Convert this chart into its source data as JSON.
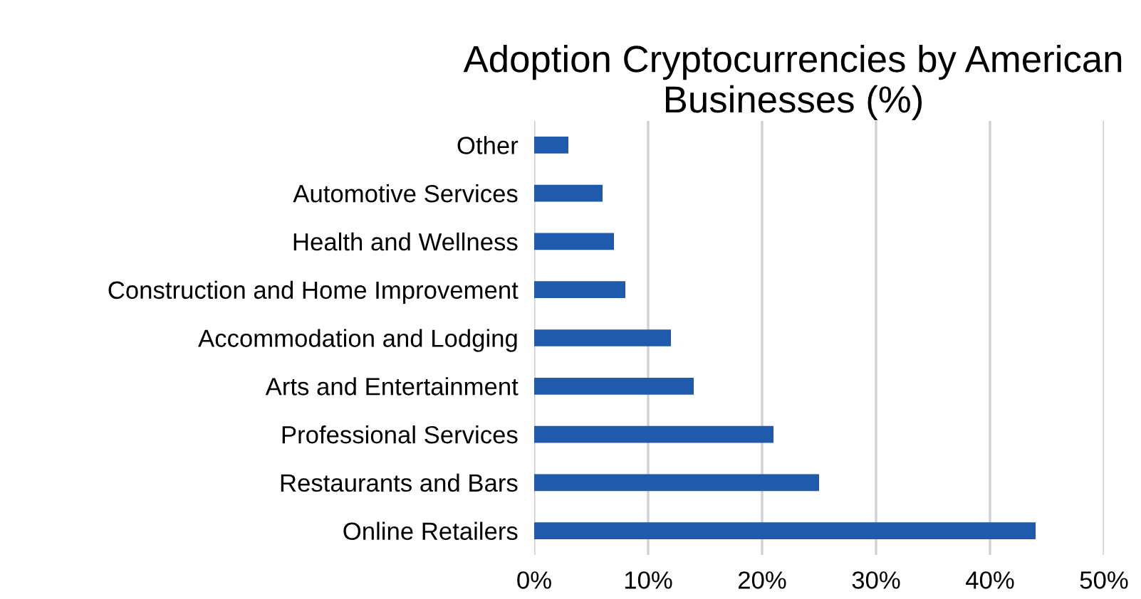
{
  "chart_data": {
    "type": "bar",
    "orientation": "horizontal",
    "title": "Adoption Cryptocurrencies by American\nBusinesses (%)",
    "categories": [
      "Other",
      "Automotive Services",
      "Health and Wellness",
      "Construction and Home Improvement",
      "Accommodation and Lodging",
      "Arts and Entertainment",
      "Professional Services",
      "Restaurants and Bars",
      "Online Retailers"
    ],
    "values": [
      3,
      6,
      7,
      8,
      12,
      14,
      21,
      25,
      44
    ],
    "color": "#1f5aad",
    "xlim": [
      0,
      50
    ],
    "xticks": [
      {
        "value": 0,
        "label": "0%"
      },
      {
        "value": 10,
        "label": "10%"
      },
      {
        "value": 20,
        "label": "20%"
      },
      {
        "value": 30,
        "label": "30%"
      },
      {
        "value": 40,
        "label": "40%"
      },
      {
        "value": 50,
        "label": "50%"
      }
    ],
    "grid": "x"
  }
}
